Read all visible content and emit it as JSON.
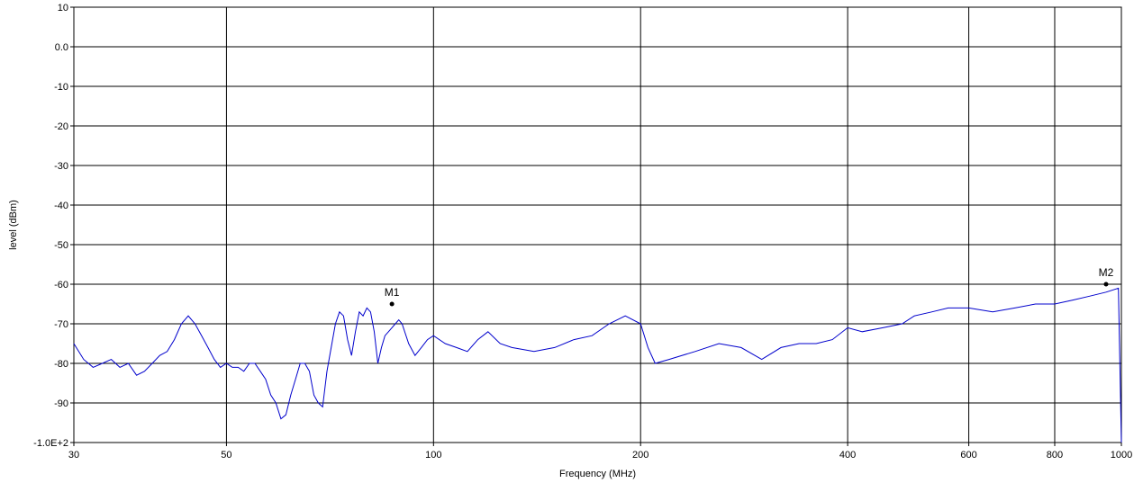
{
  "chart_data": {
    "type": "line",
    "xlabel": "Frequency (MHz)",
    "ylabel": "level (dBm)",
    "x_scale": "log",
    "xlim": [
      30,
      1000
    ],
    "ylim": [
      -100,
      10
    ],
    "grid": true,
    "x_ticks": [
      30,
      50,
      100,
      200,
      400,
      600,
      800,
      1000
    ],
    "x_tick_labels": [
      "30",
      "50",
      "100",
      "200",
      "400",
      "600",
      "800",
      "1000"
    ],
    "y_ticks": [
      10,
      0,
      -10,
      -20,
      -30,
      -40,
      -50,
      -60,
      -70,
      -80,
      -90,
      -100
    ],
    "y_tick_labels": [
      "10",
      "0.0",
      "-10",
      "-20",
      "-30",
      "-40",
      "-50",
      "-60",
      "-70",
      "-80",
      "-90",
      "-1.0E+2"
    ],
    "series_color": "#0000cc",
    "series": [
      {
        "x": [
          30,
          31,
          32,
          33,
          34,
          35,
          36,
          37,
          38,
          39,
          40,
          41,
          42,
          43,
          44,
          45,
          46,
          47,
          48,
          49,
          50,
          51,
          52,
          53,
          54,
          55,
          56,
          57,
          58,
          59,
          60,
          61,
          62,
          63,
          64,
          65,
          66,
          67,
          68,
          69,
          70,
          71,
          72,
          73,
          74,
          75,
          76,
          77,
          78,
          79,
          80,
          81,
          82,
          83,
          84,
          85,
          86,
          87,
          88,
          89,
          90,
          92,
          94,
          96,
          98,
          100,
          104,
          108,
          112,
          116,
          120,
          125,
          130,
          140,
          150,
          160,
          170,
          180,
          190,
          200,
          205,
          210,
          220,
          240,
          260,
          280,
          300,
          320,
          340,
          360,
          380,
          400,
          420,
          450,
          480,
          500,
          530,
          560,
          600,
          650,
          700,
          750,
          800,
          850,
          900,
          950,
          990,
          1000
        ],
        "y": [
          -75,
          -79,
          -81,
          -80,
          -79,
          -81,
          -80,
          -83,
          -82,
          -80,
          -78,
          -77,
          -74,
          -70,
          -68,
          -70,
          -73,
          -76,
          -79,
          -81,
          -80,
          -81,
          -81,
          -82,
          -80,
          -80,
          -82,
          -84,
          -88,
          -90,
          -94,
          -93,
          -88,
          -84,
          -80,
          -80,
          -82,
          -88,
          -90,
          -91,
          -82,
          -76,
          -70,
          -67,
          -68,
          -74,
          -78,
          -72,
          -67,
          -68,
          -66,
          -67,
          -72,
          -80,
          -76,
          -73,
          -72,
          -71,
          -70,
          -69,
          -70,
          -75,
          -78,
          -76,
          -74,
          -73,
          -75,
          -76,
          -77,
          -74,
          -72,
          -75,
          -76,
          -77,
          -76,
          -74,
          -73,
          -70,
          -68,
          -70,
          -76,
          -80,
          -79,
          -77,
          -75,
          -76,
          -79,
          -76,
          -75,
          -75,
          -74,
          -71,
          -72,
          -71,
          -70,
          -68,
          -67,
          -66,
          -66,
          -67,
          -66,
          -65,
          -65,
          -64,
          -63,
          -62,
          -61,
          -100
        ]
      }
    ],
    "markers": [
      {
        "label": "M1",
        "x": 87,
        "y": -65
      },
      {
        "label": "M2",
        "x": 950,
        "y": -60
      }
    ]
  }
}
